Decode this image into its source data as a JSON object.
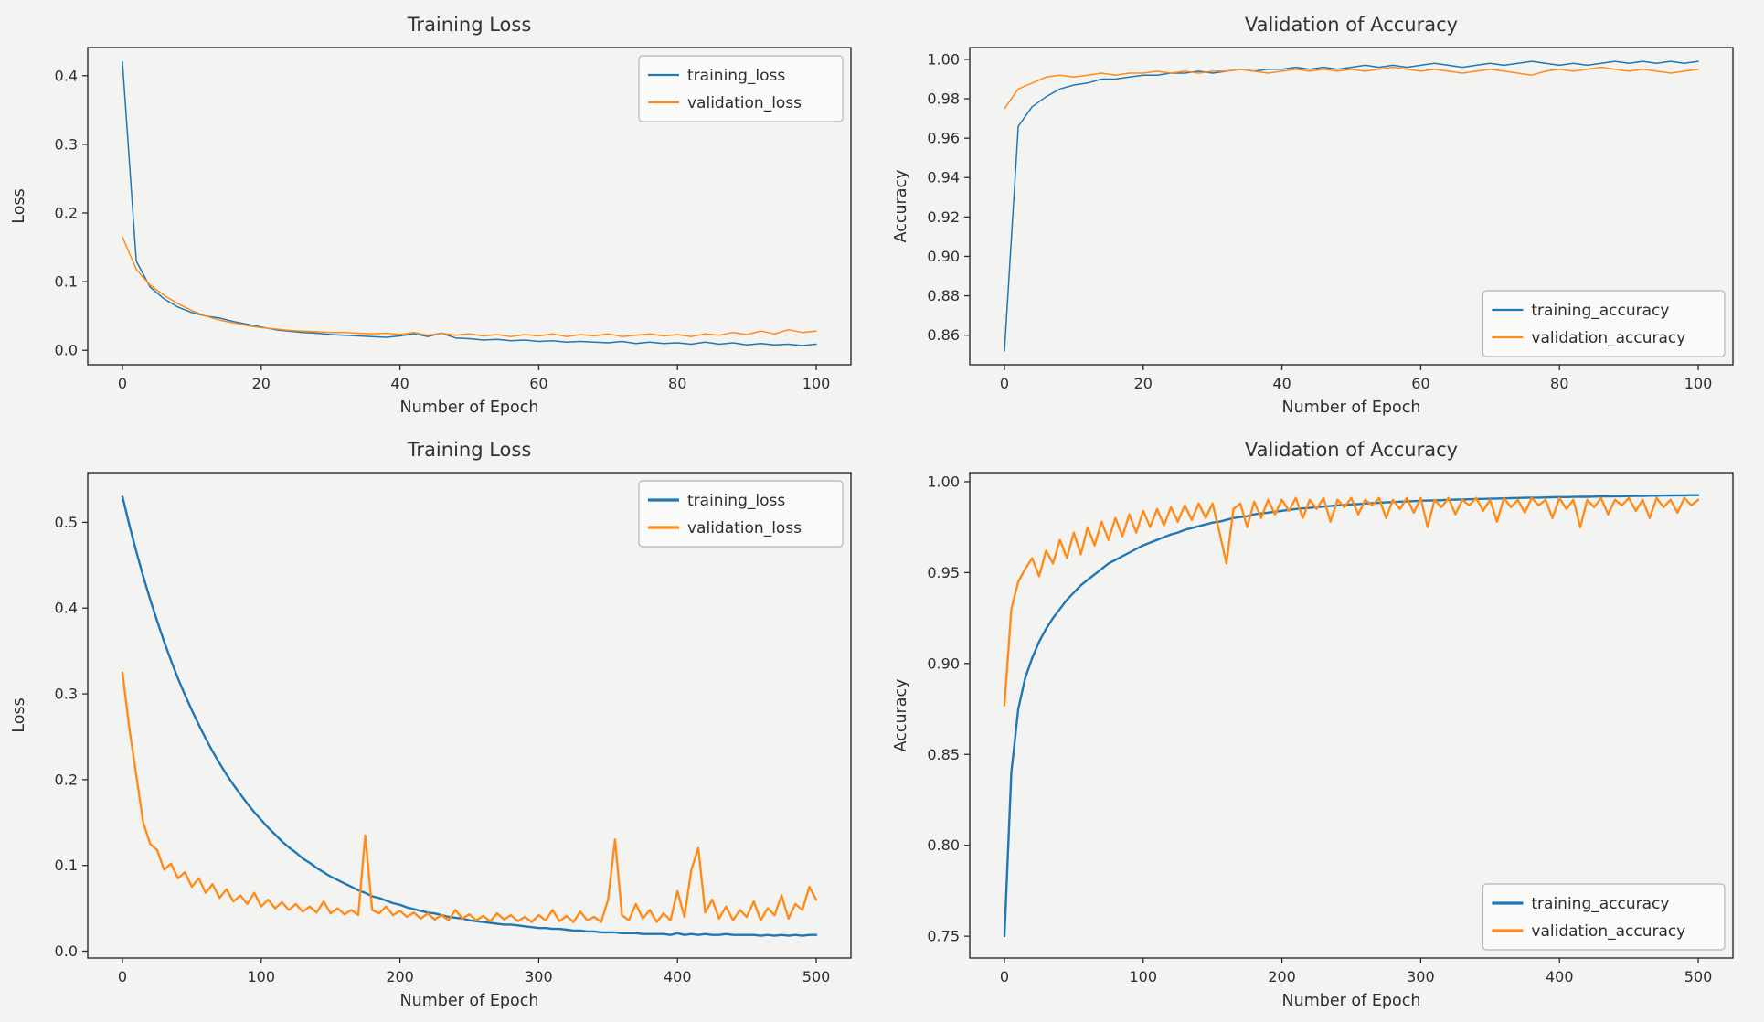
{
  "figure": {
    "background": "#f3f3f2",
    "axis_color": "#2b2b2b",
    "text_color": "#2e2e2e",
    "legend_border": "#b5b5b5",
    "legend_bg": "#fbfbfa"
  },
  "chart_data": [
    {
      "id": "training-loss-100",
      "type": "line",
      "title": "Training Loss",
      "xlabel": "Number of Epoch",
      "ylabel": "Loss",
      "xlim": [
        -5,
        105
      ],
      "ylim": [
        -0.021,
        0.441
      ],
      "xticks": [
        0,
        20,
        40,
        60,
        80,
        100
      ],
      "xtick_labels": [
        "0",
        "20",
        "40",
        "60",
        "80",
        "100"
      ],
      "yticks": [
        0.0,
        0.1,
        0.2,
        0.3,
        0.4
      ],
      "ytick_labels": [
        "0.0",
        "0.1",
        "0.2",
        "0.3",
        "0.4"
      ],
      "grid": false,
      "legend": {
        "position": "top-right"
      },
      "series": [
        {
          "name": "training_loss",
          "color": "#1f77b4",
          "linewidth": 1.5,
          "x_start": 0,
          "x_step": 2,
          "values": [
            0.42,
            0.13,
            0.092,
            0.075,
            0.063,
            0.055,
            0.05,
            0.047,
            0.042,
            0.038,
            0.034,
            0.03,
            0.028,
            0.026,
            0.025,
            0.023,
            0.022,
            0.021,
            0.02,
            0.019,
            0.021,
            0.024,
            0.02,
            0.025,
            0.018,
            0.017,
            0.015,
            0.016,
            0.014,
            0.015,
            0.013,
            0.014,
            0.012,
            0.013,
            0.012,
            0.011,
            0.013,
            0.01,
            0.012,
            0.01,
            0.011,
            0.009,
            0.012,
            0.009,
            0.011,
            0.008,
            0.01,
            0.008,
            0.009,
            0.007,
            0.009
          ]
        },
        {
          "name": "validation_loss",
          "color": "#ff8c1a",
          "linewidth": 1.5,
          "x_start": 0,
          "x_step": 2,
          "values": [
            0.165,
            0.118,
            0.095,
            0.08,
            0.068,
            0.058,
            0.05,
            0.044,
            0.04,
            0.036,
            0.033,
            0.031,
            0.029,
            0.028,
            0.027,
            0.026,
            0.026,
            0.025,
            0.024,
            0.025,
            0.023,
            0.026,
            0.022,
            0.025,
            0.022,
            0.024,
            0.021,
            0.023,
            0.02,
            0.023,
            0.021,
            0.024,
            0.02,
            0.023,
            0.021,
            0.024,
            0.02,
            0.022,
            0.024,
            0.021,
            0.023,
            0.02,
            0.024,
            0.022,
            0.026,
            0.023,
            0.028,
            0.024,
            0.03,
            0.026,
            0.028
          ]
        }
      ]
    },
    {
      "id": "validation-accuracy-100",
      "type": "line",
      "title": "Validation of Accuracy",
      "xlabel": "Number of Epoch",
      "ylabel": "Accuracy",
      "xlim": [
        -5,
        105
      ],
      "ylim": [
        0.845,
        1.006
      ],
      "xticks": [
        0,
        20,
        40,
        60,
        80,
        100
      ],
      "xtick_labels": [
        "0",
        "20",
        "40",
        "60",
        "80",
        "100"
      ],
      "yticks": [
        0.86,
        0.88,
        0.9,
        0.92,
        0.94,
        0.96,
        0.98,
        1.0
      ],
      "ytick_labels": [
        "0.86",
        "0.88",
        "0.90",
        "0.92",
        "0.94",
        "0.96",
        "0.98",
        "1.00"
      ],
      "grid": false,
      "legend": {
        "position": "bottom-right"
      },
      "series": [
        {
          "name": "training_accuracy",
          "color": "#1f77b4",
          "linewidth": 1.5,
          "x_start": 0,
          "x_step": 2,
          "values": [
            0.852,
            0.966,
            0.976,
            0.981,
            0.985,
            0.987,
            0.988,
            0.99,
            0.99,
            0.991,
            0.992,
            0.992,
            0.993,
            0.993,
            0.994,
            0.993,
            0.994,
            0.995,
            0.994,
            0.995,
            0.995,
            0.996,
            0.995,
            0.996,
            0.995,
            0.996,
            0.997,
            0.996,
            0.997,
            0.996,
            0.997,
            0.998,
            0.997,
            0.996,
            0.997,
            0.998,
            0.997,
            0.998,
            0.999,
            0.998,
            0.997,
            0.998,
            0.997,
            0.998,
            0.999,
            0.998,
            0.999,
            0.998,
            0.999,
            0.998,
            0.999
          ]
        },
        {
          "name": "validation_accuracy",
          "color": "#ff8c1a",
          "linewidth": 1.5,
          "x_start": 0,
          "x_step": 2,
          "values": [
            0.975,
            0.985,
            0.988,
            0.991,
            0.992,
            0.991,
            0.992,
            0.993,
            0.992,
            0.993,
            0.993,
            0.994,
            0.993,
            0.994,
            0.993,
            0.994,
            0.994,
            0.995,
            0.994,
            0.993,
            0.994,
            0.995,
            0.994,
            0.995,
            0.994,
            0.995,
            0.994,
            0.995,
            0.996,
            0.995,
            0.994,
            0.995,
            0.994,
            0.993,
            0.994,
            0.995,
            0.994,
            0.993,
            0.992,
            0.994,
            0.995,
            0.994,
            0.995,
            0.996,
            0.995,
            0.994,
            0.995,
            0.994,
            0.993,
            0.994,
            0.995
          ]
        }
      ]
    },
    {
      "id": "training-loss-500",
      "type": "line",
      "title": "Training Loss",
      "xlabel": "Number of Epoch",
      "ylabel": "Loss",
      "xlim": [
        -25,
        525
      ],
      "ylim": [
        -0.008,
        0.558
      ],
      "xticks": [
        0,
        100,
        200,
        300,
        400,
        500
      ],
      "xtick_labels": [
        "0",
        "100",
        "200",
        "300",
        "400",
        "500"
      ],
      "yticks": [
        0.0,
        0.1,
        0.2,
        0.3,
        0.4,
        0.5
      ],
      "ytick_labels": [
        "0.0",
        "0.1",
        "0.2",
        "0.3",
        "0.4",
        "0.5"
      ],
      "grid": false,
      "legend": {
        "position": "top-right"
      },
      "series": [
        {
          "name": "training_loss",
          "color": "#1f77b4",
          "linewidth": 2.4,
          "x_start": 0,
          "x_step": 5,
          "values": [
            0.53,
            0.497,
            0.466,
            0.437,
            0.41,
            0.385,
            0.361,
            0.339,
            0.318,
            0.299,
            0.281,
            0.264,
            0.248,
            0.233,
            0.219,
            0.206,
            0.194,
            0.183,
            0.172,
            0.162,
            0.153,
            0.144,
            0.136,
            0.128,
            0.121,
            0.115,
            0.108,
            0.103,
            0.097,
            0.092,
            0.087,
            0.083,
            0.079,
            0.075,
            0.071,
            0.068,
            0.064,
            0.062,
            0.059,
            0.056,
            0.054,
            0.051,
            0.049,
            0.047,
            0.045,
            0.044,
            0.042,
            0.04,
            0.039,
            0.038,
            0.036,
            0.035,
            0.034,
            0.033,
            0.032,
            0.031,
            0.031,
            0.03,
            0.029,
            0.028,
            0.027,
            0.027,
            0.026,
            0.026,
            0.025,
            0.024,
            0.024,
            0.023,
            0.023,
            0.022,
            0.022,
            0.022,
            0.021,
            0.021,
            0.021,
            0.02,
            0.02,
            0.02,
            0.02,
            0.019,
            0.021,
            0.019,
            0.02,
            0.019,
            0.02,
            0.019,
            0.019,
            0.02,
            0.019,
            0.019,
            0.019,
            0.019,
            0.018,
            0.019,
            0.018,
            0.019,
            0.018,
            0.019,
            0.018,
            0.019,
            0.019
          ]
        },
        {
          "name": "validation_loss",
          "color": "#ff8c1a",
          "linewidth": 2.4,
          "x_start": 0,
          "x_step": 5,
          "values": [
            0.325,
            0.26,
            0.205,
            0.15,
            0.125,
            0.118,
            0.095,
            0.102,
            0.085,
            0.092,
            0.075,
            0.085,
            0.068,
            0.078,
            0.062,
            0.072,
            0.058,
            0.065,
            0.055,
            0.068,
            0.052,
            0.06,
            0.05,
            0.057,
            0.048,
            0.055,
            0.046,
            0.052,
            0.045,
            0.058,
            0.044,
            0.05,
            0.043,
            0.048,
            0.042,
            0.135,
            0.048,
            0.044,
            0.052,
            0.042,
            0.047,
            0.04,
            0.045,
            0.038,
            0.044,
            0.037,
            0.042,
            0.036,
            0.048,
            0.038,
            0.043,
            0.036,
            0.041,
            0.035,
            0.044,
            0.037,
            0.042,
            0.035,
            0.04,
            0.034,
            0.042,
            0.036,
            0.048,
            0.035,
            0.041,
            0.034,
            0.046,
            0.036,
            0.04,
            0.034,
            0.06,
            0.13,
            0.042,
            0.036,
            0.055,
            0.038,
            0.048,
            0.034,
            0.044,
            0.036,
            0.07,
            0.04,
            0.095,
            0.12,
            0.045,
            0.06,
            0.038,
            0.052,
            0.036,
            0.048,
            0.04,
            0.058,
            0.036,
            0.05,
            0.042,
            0.065,
            0.038,
            0.055,
            0.048,
            0.075,
            0.06
          ]
        }
      ]
    },
    {
      "id": "validation-accuracy-500",
      "type": "line",
      "title": "Validation of Accuracy",
      "xlabel": "Number of Epoch",
      "ylabel": "Accuracy",
      "xlim": [
        -25,
        525
      ],
      "ylim": [
        0.738,
        1.005
      ],
      "xticks": [
        0,
        100,
        200,
        300,
        400,
        500
      ],
      "xtick_labels": [
        "0",
        "100",
        "200",
        "300",
        "400",
        "500"
      ],
      "yticks": [
        0.75,
        0.8,
        0.85,
        0.9,
        0.95,
        1.0
      ],
      "ytick_labels": [
        "0.75",
        "0.80",
        "0.85",
        "0.90",
        "0.95",
        "1.00"
      ],
      "grid": false,
      "legend": {
        "position": "bottom-right"
      },
      "series": [
        {
          "name": "training_accuracy",
          "color": "#1f77b4",
          "linewidth": 2.4,
          "x_start": 0,
          "x_step": 5,
          "values": [
            0.75,
            0.84,
            0.875,
            0.892,
            0.903,
            0.912,
            0.919,
            0.925,
            0.93,
            0.935,
            0.939,
            0.943,
            0.946,
            0.949,
            0.952,
            0.955,
            0.957,
            0.959,
            0.961,
            0.963,
            0.965,
            0.9665,
            0.968,
            0.9695,
            0.971,
            0.972,
            0.9735,
            0.9745,
            0.9755,
            0.9765,
            0.9775,
            0.978,
            0.979,
            0.98,
            0.9805,
            0.981,
            0.982,
            0.9825,
            0.983,
            0.9835,
            0.984,
            0.9845,
            0.985,
            0.9853,
            0.9856,
            0.986,
            0.9863,
            0.9866,
            0.987,
            0.9872,
            0.9875,
            0.9877,
            0.988,
            0.9882,
            0.9884,
            0.9886,
            0.9888,
            0.989,
            0.9891,
            0.9893,
            0.9895,
            0.9896,
            0.9897,
            0.9898,
            0.99,
            0.9901,
            0.9902,
            0.9903,
            0.9904,
            0.9905,
            0.9906,
            0.9907,
            0.9908,
            0.9909,
            0.991,
            0.9911,
            0.9912,
            0.9912,
            0.9913,
            0.9914,
            0.9915,
            0.9915,
            0.9916,
            0.9917,
            0.9917,
            0.9918,
            0.9919,
            0.9919,
            0.992,
            0.992,
            0.9921,
            0.9922,
            0.9922,
            0.9923,
            0.9923,
            0.9924,
            0.9924,
            0.9925,
            0.9925,
            0.9926,
            0.9926
          ]
        },
        {
          "name": "validation_accuracy",
          "color": "#ff8c1a",
          "linewidth": 2.4,
          "x_start": 0,
          "x_step": 5,
          "values": [
            0.877,
            0.93,
            0.945,
            0.952,
            0.958,
            0.948,
            0.962,
            0.955,
            0.968,
            0.958,
            0.972,
            0.96,
            0.975,
            0.965,
            0.978,
            0.968,
            0.98,
            0.97,
            0.982,
            0.972,
            0.984,
            0.975,
            0.985,
            0.976,
            0.986,
            0.978,
            0.987,
            0.979,
            0.988,
            0.98,
            0.988,
            0.972,
            0.955,
            0.985,
            0.988,
            0.975,
            0.989,
            0.98,
            0.99,
            0.982,
            0.99,
            0.984,
            0.991,
            0.98,
            0.99,
            0.985,
            0.991,
            0.978,
            0.99,
            0.986,
            0.991,
            0.982,
            0.99,
            0.987,
            0.991,
            0.98,
            0.99,
            0.985,
            0.991,
            0.983,
            0.991,
            0.975,
            0.99,
            0.986,
            0.991,
            0.982,
            0.99,
            0.987,
            0.991,
            0.984,
            0.99,
            0.978,
            0.991,
            0.986,
            0.99,
            0.983,
            0.991,
            0.987,
            0.99,
            0.98,
            0.991,
            0.985,
            0.99,
            0.975,
            0.99,
            0.986,
            0.991,
            0.982,
            0.99,
            0.987,
            0.991,
            0.984,
            0.99,
            0.98,
            0.991,
            0.986,
            0.99,
            0.983,
            0.991,
            0.987,
            0.99
          ]
        }
      ]
    }
  ]
}
